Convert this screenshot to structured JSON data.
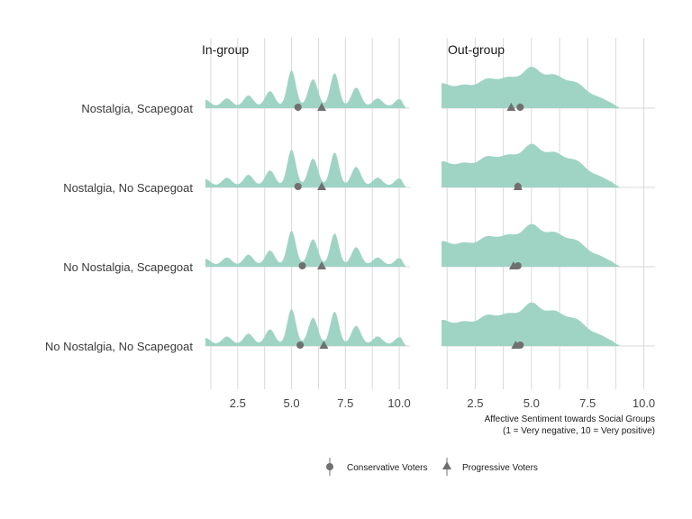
{
  "chart_data": {
    "type": "ridgeline",
    "panels": [
      {
        "title": "In-group"
      },
      {
        "title": "Out-group"
      }
    ],
    "rows": [
      "Nostalgia, Scapegoat",
      "Nostalgia, No Scapegoat",
      "No Nostalgia, Scapegoat",
      "No Nostalgia, No Scapegoat"
    ],
    "x_ticks": [
      "2.5",
      "5.0",
      "7.5",
      "10.0"
    ],
    "x_tick_values": [
      2.5,
      5.0,
      7.5,
      10.0
    ],
    "xlim": [
      1,
      10.5
    ],
    "x_axis_title_line1": "Affective Sentiment towards Social Groups",
    "x_axis_title_line2": "(1 = Very negative, 10 = Very positive)",
    "grid": true,
    "legend_position": "bottom",
    "legend": [
      {
        "label": "Conservative Voters",
        "shape": "circle"
      },
      {
        "label": "Progressive Voters",
        "shape": "triangle"
      }
    ],
    "fill_color": "#9fd4c5",
    "marker_color": "#707070",
    "means": {
      "In-group": [
        {
          "conservative": 5.3,
          "progressive": 6.4
        },
        {
          "conservative": 5.3,
          "progressive": 6.4
        },
        {
          "conservative": 5.5,
          "progressive": 6.4
        },
        {
          "conservative": 5.4,
          "progressive": 6.5
        }
      ],
      "Out-group": [
        {
          "conservative": 4.5,
          "progressive": 4.1
        },
        {
          "conservative": 4.4,
          "progressive": 4.4
        },
        {
          "conservative": 4.4,
          "progressive": 4.2
        },
        {
          "conservative": 4.5,
          "progressive": 4.3
        }
      ]
    }
  }
}
